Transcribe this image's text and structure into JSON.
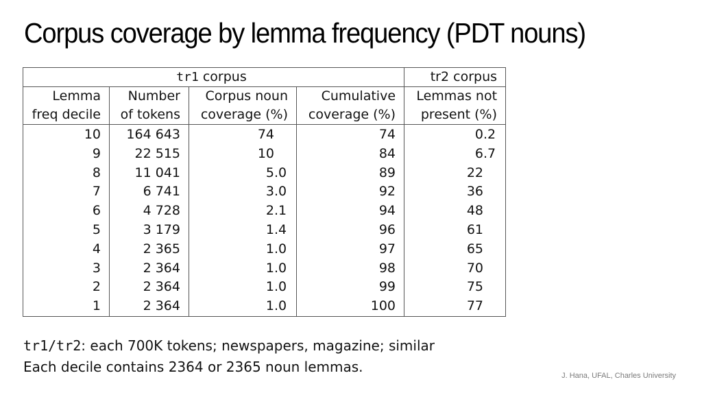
{
  "slide": {
    "title": "Corpus coverage by lemma frequency (PDT nouns)",
    "credit": "J. Hana, UFAL, Charles University"
  },
  "table": {
    "group_headers": [
      {
        "code": "tr1",
        "label": " corpus",
        "colspan": 4
      },
      {
        "code": "tr2",
        "label": "tr2 corpus",
        "colspan": 1
      }
    ],
    "columns": [
      {
        "line1": "Lemma",
        "line2": "freq decile"
      },
      {
        "line1": "Number",
        "line2": "of tokens"
      },
      {
        "line1": "Corpus noun",
        "line2": "coverage (%)"
      },
      {
        "line1": "Cumulative",
        "line2": "coverage (%)"
      },
      {
        "line1": "Lemmas not",
        "line2": "present (%)"
      }
    ],
    "rows": [
      {
        "decile": "10",
        "tokens": "164 643",
        "coverage_int": "74",
        "coverage_frac": "",
        "cumulative": "74",
        "not_present_int": "0",
        "not_present_frac": ".2"
      },
      {
        "decile": "9",
        "tokens": "22 515",
        "coverage_int": "10",
        "coverage_frac": "",
        "cumulative": "84",
        "not_present_int": "6",
        "not_present_frac": ".7"
      },
      {
        "decile": "8",
        "tokens": "11 041",
        "coverage_int": "5",
        "coverage_frac": ".0",
        "cumulative": "89",
        "not_present_int": "22",
        "not_present_frac": ""
      },
      {
        "decile": "7",
        "tokens": "6 741",
        "coverage_int": "3",
        "coverage_frac": ".0",
        "cumulative": "92",
        "not_present_int": "36",
        "not_present_frac": ""
      },
      {
        "decile": "6",
        "tokens": "4 728",
        "coverage_int": "2",
        "coverage_frac": ".1",
        "cumulative": "94",
        "not_present_int": "48",
        "not_present_frac": ""
      },
      {
        "decile": "5",
        "tokens": "3 179",
        "coverage_int": "1",
        "coverage_frac": ".4",
        "cumulative": "96",
        "not_present_int": "61",
        "not_present_frac": ""
      },
      {
        "decile": "4",
        "tokens": "2 365",
        "coverage_int": "1",
        "coverage_frac": ".0",
        "cumulative": "97",
        "not_present_int": "65",
        "not_present_frac": ""
      },
      {
        "decile": "3",
        "tokens": "2 364",
        "coverage_int": "1",
        "coverage_frac": ".0",
        "cumulative": "98",
        "not_present_int": "70",
        "not_present_frac": ""
      },
      {
        "decile": "2",
        "tokens": "2 364",
        "coverage_int": "1",
        "coverage_frac": ".0",
        "cumulative": "99",
        "not_present_int": "75",
        "not_present_frac": ""
      },
      {
        "decile": "1",
        "tokens": "2 364",
        "coverage_int": "1",
        "coverage_frac": ".0",
        "cumulative": "100",
        "not_present_int": "77",
        "not_present_frac": ""
      }
    ]
  },
  "notes": {
    "line1_code": "tr1/tr2",
    "line1_text": ": each 700K tokens; newspapers, magazine; similar",
    "line2_text": "Each decile contains 2364 or 2365 noun lemmas."
  }
}
